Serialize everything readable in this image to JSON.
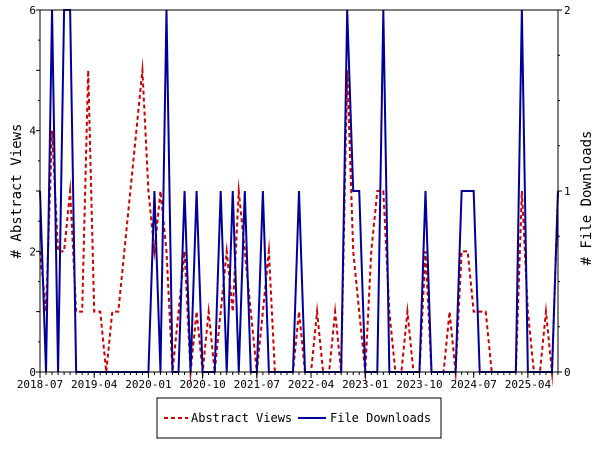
{
  "chart_data": {
    "type": "line",
    "title": "",
    "xlabel": "",
    "y_left_label": "# Abstract Views",
    "y_right_label": "# File Downloads",
    "y_left_range": [
      0,
      6
    ],
    "y_right_range": [
      0,
      2
    ],
    "y_left_ticks": [
      "0",
      "2",
      "4",
      "6"
    ],
    "y_right_ticks": [
      "0",
      "1",
      "2"
    ],
    "x_range": [
      "2018-07",
      "2025-09"
    ],
    "x_ticks": [
      "2018-07",
      "2019-04",
      "2020-01",
      "2020-10",
      "2021-07",
      "2022-04",
      "2023-01",
      "2023-10",
      "2024-07",
      "2025-04"
    ],
    "grid": false,
    "legend_position": "bottom-center",
    "series": [
      {
        "name": "Abstract Views",
        "axis": "left",
        "color": "#cc0000",
        "style": "dashed",
        "points": [
          [
            "2018-07",
            2
          ],
          [
            "2018-08",
            1
          ],
          [
            "2018-09",
            4
          ],
          [
            "2018-10",
            2
          ],
          [
            "2018-11",
            2
          ],
          [
            "2018-12",
            3
          ],
          [
            "2019-01",
            1
          ],
          [
            "2019-02",
            1
          ],
          [
            "2019-03",
            5
          ],
          [
            "2019-04",
            1
          ],
          [
            "2019-05",
            1
          ],
          [
            "2019-06",
            0
          ],
          [
            "2019-07",
            1
          ],
          [
            "2019-08",
            1
          ],
          [
            "2019-09",
            2
          ],
          [
            "2019-10",
            3
          ],
          [
            "2019-11",
            4
          ],
          [
            "2019-12",
            5
          ],
          [
            "2020-01",
            3
          ],
          [
            "2020-02",
            2
          ],
          [
            "2020-03",
            3
          ],
          [
            "2020-04",
            2
          ],
          [
            "2020-05",
            0
          ],
          [
            "2020-06",
            1
          ],
          [
            "2020-07",
            2
          ],
          [
            "2020-08",
            0
          ],
          [
            "2020-09",
            1
          ],
          [
            "2020-10",
            0
          ],
          [
            "2020-11",
            1
          ],
          [
            "2020-12",
            0
          ],
          [
            "2021-01",
            1
          ],
          [
            "2021-02",
            2
          ],
          [
            "2021-03",
            1
          ],
          [
            "2021-04",
            3
          ],
          [
            "2021-05",
            2
          ],
          [
            "2021-06",
            1
          ],
          [
            "2021-07",
            0
          ],
          [
            "2021-08",
            1
          ],
          [
            "2021-09",
            2
          ],
          [
            "2021-10",
            0
          ],
          [
            "2021-11",
            0
          ],
          [
            "2021-12",
            0
          ],
          [
            "2022-01",
            0
          ],
          [
            "2022-02",
            1
          ],
          [
            "2022-03",
            0
          ],
          [
            "2022-04",
            0
          ],
          [
            "2022-05",
            1
          ],
          [
            "2022-06",
            0
          ],
          [
            "2022-07",
            0
          ],
          [
            "2022-08",
            1
          ],
          [
            "2022-09",
            0
          ],
          [
            "2022-10",
            5
          ],
          [
            "2022-11",
            2
          ],
          [
            "2022-12",
            1
          ],
          [
            "2023-01",
            0
          ],
          [
            "2023-02",
            2
          ],
          [
            "2023-03",
            3
          ],
          [
            "2023-04",
            3
          ],
          [
            "2023-05",
            1
          ],
          [
            "2023-06",
            0
          ],
          [
            "2023-07",
            0
          ],
          [
            "2023-08",
            1
          ],
          [
            "2023-09",
            0
          ],
          [
            "2023-10",
            0
          ],
          [
            "2023-11",
            2
          ],
          [
            "2023-12",
            0
          ],
          [
            "2024-01",
            0
          ],
          [
            "2024-02",
            0
          ],
          [
            "2024-03",
            1
          ],
          [
            "2024-04",
            0
          ],
          [
            "2024-05",
            2
          ],
          [
            "2024-06",
            2
          ],
          [
            "2024-07",
            1
          ],
          [
            "2024-08",
            1
          ],
          [
            "2024-09",
            1
          ],
          [
            "2024-10",
            0
          ],
          [
            "2024-11",
            0
          ],
          [
            "2024-12",
            0
          ],
          [
            "2025-01",
            0
          ],
          [
            "2025-02",
            0
          ],
          [
            "2025-03",
            3
          ],
          [
            "2025-04",
            1
          ],
          [
            "2025-05",
            0
          ],
          [
            "2025-06",
            0
          ],
          [
            "2025-07",
            1
          ],
          [
            "2025-08",
            0
          ],
          [
            "2025-09",
            3
          ]
        ]
      },
      {
        "name": "File Downloads",
        "axis": "right",
        "color": "#000099",
        "style": "solid",
        "points": [
          [
            "2018-07",
            1
          ],
          [
            "2018-08",
            0
          ],
          [
            "2018-09",
            2
          ],
          [
            "2018-10",
            0
          ],
          [
            "2018-11",
            2
          ],
          [
            "2018-12",
            2
          ],
          [
            "2019-01",
            0
          ],
          [
            "2019-02",
            0
          ],
          [
            "2019-03",
            0
          ],
          [
            "2019-04",
            0
          ],
          [
            "2019-05",
            0
          ],
          [
            "2019-06",
            0
          ],
          [
            "2019-07",
            0
          ],
          [
            "2019-08",
            0
          ],
          [
            "2019-09",
            0
          ],
          [
            "2019-10",
            0
          ],
          [
            "2019-11",
            0
          ],
          [
            "2019-12",
            0
          ],
          [
            "2020-01",
            0
          ],
          [
            "2020-02",
            1
          ],
          [
            "2020-03",
            0
          ],
          [
            "2020-04",
            2
          ],
          [
            "2020-05",
            0
          ],
          [
            "2020-06",
            0
          ],
          [
            "2020-07",
            1
          ],
          [
            "2020-08",
            0
          ],
          [
            "2020-09",
            1
          ],
          [
            "2020-10",
            0
          ],
          [
            "2020-11",
            0
          ],
          [
            "2020-12",
            0
          ],
          [
            "2021-01",
            1
          ],
          [
            "2021-02",
            0
          ],
          [
            "2021-03",
            1
          ],
          [
            "2021-04",
            0
          ],
          [
            "2021-05",
            1
          ],
          [
            "2021-06",
            0
          ],
          [
            "2021-07",
            0
          ],
          [
            "2021-08",
            1
          ],
          [
            "2021-09",
            0
          ],
          [
            "2021-10",
            0
          ],
          [
            "2021-11",
            0
          ],
          [
            "2021-12",
            0
          ],
          [
            "2022-01",
            0
          ],
          [
            "2022-02",
            1
          ],
          [
            "2022-03",
            0
          ],
          [
            "2022-04",
            0
          ],
          [
            "2022-05",
            0
          ],
          [
            "2022-06",
            0
          ],
          [
            "2022-07",
            0
          ],
          [
            "2022-08",
            0
          ],
          [
            "2022-09",
            0
          ],
          [
            "2022-10",
            2
          ],
          [
            "2022-11",
            1
          ],
          [
            "2022-12",
            1
          ],
          [
            "2023-01",
            0
          ],
          [
            "2023-02",
            0
          ],
          [
            "2023-03",
            0
          ],
          [
            "2023-04",
            2
          ],
          [
            "2023-05",
            0
          ],
          [
            "2023-06",
            0
          ],
          [
            "2023-07",
            0
          ],
          [
            "2023-08",
            0
          ],
          [
            "2023-09",
            0
          ],
          [
            "2023-10",
            0
          ],
          [
            "2023-11",
            1
          ],
          [
            "2023-12",
            0
          ],
          [
            "2024-01",
            0
          ],
          [
            "2024-02",
            0
          ],
          [
            "2024-03",
            0
          ],
          [
            "2024-04",
            0
          ],
          [
            "2024-05",
            1
          ],
          [
            "2024-06",
            1
          ],
          [
            "2024-07",
            1
          ],
          [
            "2024-08",
            0
          ],
          [
            "2024-09",
            0
          ],
          [
            "2024-10",
            0
          ],
          [
            "2024-11",
            0
          ],
          [
            "2024-12",
            0
          ],
          [
            "2025-01",
            0
          ],
          [
            "2025-02",
            0
          ],
          [
            "2025-03",
            2
          ],
          [
            "2025-04",
            0
          ],
          [
            "2025-05",
            0
          ],
          [
            "2025-06",
            0
          ],
          [
            "2025-07",
            0
          ],
          [
            "2025-08",
            0
          ],
          [
            "2025-09",
            1
          ]
        ]
      }
    ]
  }
}
